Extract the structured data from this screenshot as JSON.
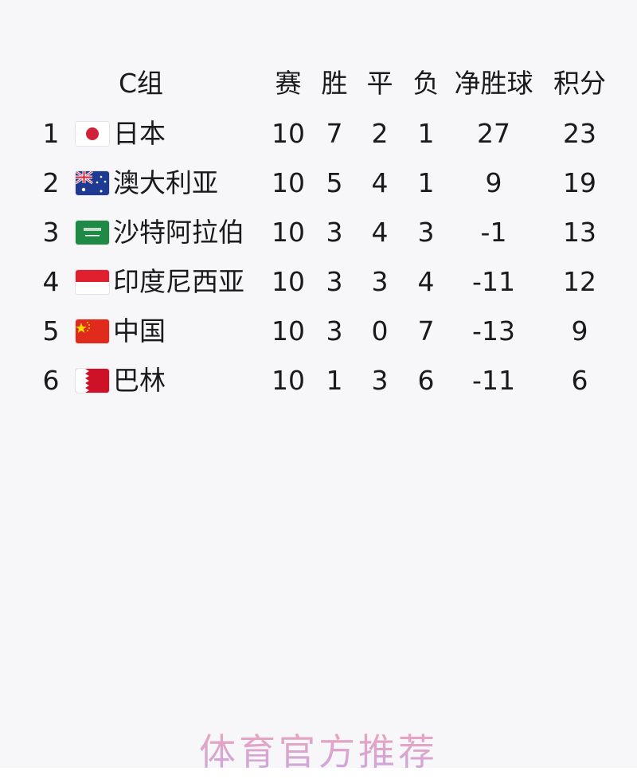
{
  "group_title": "C组",
  "columns": [
    "赛",
    "胜",
    "平",
    "负",
    "净胜球",
    "积分"
  ],
  "rows": [
    {
      "rank": "1",
      "flag": "japan-flag",
      "team": "日本",
      "played": "10",
      "won": "7",
      "drawn": "2",
      "lost": "1",
      "gd": "27",
      "pts": "23"
    },
    {
      "rank": "2",
      "flag": "australia-flag",
      "team": "澳大利亚",
      "played": "10",
      "won": "5",
      "drawn": "4",
      "lost": "1",
      "gd": "9",
      "pts": "19"
    },
    {
      "rank": "3",
      "flag": "saudi-arabia-flag",
      "team": "沙特阿拉伯",
      "played": "10",
      "won": "3",
      "drawn": "4",
      "lost": "3",
      "gd": "-1",
      "pts": "13"
    },
    {
      "rank": "4",
      "flag": "indonesia-flag",
      "team": "印度尼西亚",
      "played": "10",
      "won": "3",
      "drawn": "3",
      "lost": "4",
      "gd": "-11",
      "pts": "12"
    },
    {
      "rank": "5",
      "flag": "china-flag",
      "team": "中国",
      "played": "10",
      "won": "3",
      "drawn": "0",
      "lost": "7",
      "gd": "-13",
      "pts": "9"
    },
    {
      "rank": "6",
      "flag": "bahrain-flag",
      "team": "巴林",
      "played": "10",
      "won": "1",
      "drawn": "3",
      "lost": "6",
      "gd": "-11",
      "pts": "6"
    }
  ],
  "watermark": "体育官方推荐"
}
